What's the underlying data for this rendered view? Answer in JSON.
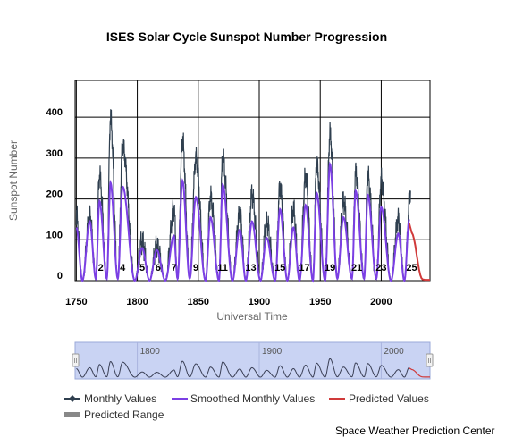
{
  "chart_data": {
    "type": "line",
    "title": "ISES Solar Cycle Sunspot Number Progression",
    "xlabel": "Universal Time",
    "ylabel": "Sunspot Number",
    "xlim": [
      1749,
      2040
    ],
    "ylim": [
      0,
      490
    ],
    "x_ticks": [
      1750,
      1800,
      1850,
      1900,
      1950,
      2000
    ],
    "y_ticks": [
      0,
      100,
      200,
      300,
      400
    ],
    "grid": true,
    "legend_position": "bottom",
    "series": [
      {
        "name": "Monthly Values",
        "color": "#2f3f4f",
        "peaks": [
          [
            1750,
            160
          ],
          [
            1761,
            160
          ],
          [
            1769,
            260
          ],
          [
            1778,
            400
          ],
          [
            1788,
            330
          ],
          [
            1804,
            95
          ],
          [
            1816,
            85
          ],
          [
            1830,
            175
          ],
          [
            1837,
            345
          ],
          [
            1848,
            300
          ],
          [
            1860,
            205
          ],
          [
            1870,
            300
          ],
          [
            1884,
            165
          ],
          [
            1894,
            210
          ],
          [
            1906,
            145
          ],
          [
            1917,
            230
          ],
          [
            1928,
            175
          ],
          [
            1938,
            255
          ],
          [
            1947,
            285
          ],
          [
            1958,
            360
          ],
          [
            1969,
            195
          ],
          [
            1979,
            265
          ],
          [
            1989,
            255
          ],
          [
            2000,
            245
          ],
          [
            2014,
            150
          ],
          [
            2024,
            220
          ]
        ],
        "minima": [
          [
            1755,
            0
          ],
          [
            1766,
            5
          ],
          [
            1775,
            5
          ],
          [
            1784,
            5
          ],
          [
            1798,
            0
          ],
          [
            1810,
            0
          ],
          [
            1823,
            0
          ],
          [
            1833,
            5
          ],
          [
            1843,
            5
          ],
          [
            1856,
            0
          ],
          [
            1867,
            0
          ],
          [
            1878,
            0
          ],
          [
            1889,
            0
          ],
          [
            1901,
            0
          ],
          [
            1913,
            0
          ],
          [
            1923,
            0
          ],
          [
            1933,
            0
          ],
          [
            1944,
            0
          ],
          [
            1954,
            0
          ],
          [
            1964,
            5
          ],
          [
            1976,
            5
          ],
          [
            1986,
            5
          ],
          [
            1996,
            5
          ],
          [
            2008,
            0
          ],
          [
            2019,
            0
          ]
        ]
      },
      {
        "name": "Smoothed Monthly Values",
        "color": "#7b3fe4",
        "peaks": [
          [
            1750,
            130
          ],
          [
            1761,
            145
          ],
          [
            1769,
            195
          ],
          [
            1778,
            240
          ],
          [
            1788,
            230
          ],
          [
            1804,
            80
          ],
          [
            1816,
            75
          ],
          [
            1830,
            110
          ],
          [
            1837,
            245
          ],
          [
            1848,
            205
          ],
          [
            1860,
            155
          ],
          [
            1870,
            235
          ],
          [
            1884,
            125
          ],
          [
            1894,
            145
          ],
          [
            1906,
            105
          ],
          [
            1917,
            175
          ],
          [
            1928,
            130
          ],
          [
            1938,
            185
          ],
          [
            1947,
            215
          ],
          [
            1958,
            285
          ],
          [
            1969,
            155
          ],
          [
            1979,
            220
          ],
          [
            1989,
            210
          ],
          [
            2000,
            180
          ],
          [
            2014,
            115
          ],
          [
            2023,
            150
          ]
        ]
      },
      {
        "name": "Predicted Values",
        "color": "#d03a3a",
        "points": [
          [
            2023,
            140
          ],
          [
            2025,
            118
          ],
          [
            2026,
            112
          ],
          [
            2027,
            100
          ],
          [
            2028,
            85
          ],
          [
            2029,
            65
          ],
          [
            2030,
            45
          ],
          [
            2031,
            28
          ],
          [
            2032,
            14
          ],
          [
            2033,
            6
          ],
          [
            2034,
            3
          ],
          [
            2036,
            2
          ],
          [
            2040,
            2
          ]
        ]
      },
      {
        "name": "Predicted Range",
        "color": "#888888"
      }
    ],
    "cycle_labels": [
      {
        "label": "2",
        "x": 1770
      },
      {
        "label": "4",
        "x": 1788
      },
      {
        "label": "5",
        "x": 1804
      },
      {
        "label": "6",
        "x": 1817
      },
      {
        "label": "7",
        "x": 1830
      },
      {
        "label": "9",
        "x": 1848
      },
      {
        "label": "11",
        "x": 1870
      },
      {
        "label": "13",
        "x": 1893
      },
      {
        "label": "15",
        "x": 1917
      },
      {
        "label": "17",
        "x": 1937
      },
      {
        "label": "19",
        "x": 1958
      },
      {
        "label": "21",
        "x": 1980
      },
      {
        "label": "23",
        "x": 2000
      },
      {
        "label": "25",
        "x": 2025
      }
    ]
  },
  "navigator": {
    "ticks": [
      "1800",
      "1900",
      "2000"
    ]
  },
  "legend": {
    "monthly": "Monthly Values",
    "smoothed": "Smoothed Monthly Values",
    "predicted": "Predicted Values",
    "range": "Predicted Range"
  },
  "credit": "Space Weather Prediction Center"
}
